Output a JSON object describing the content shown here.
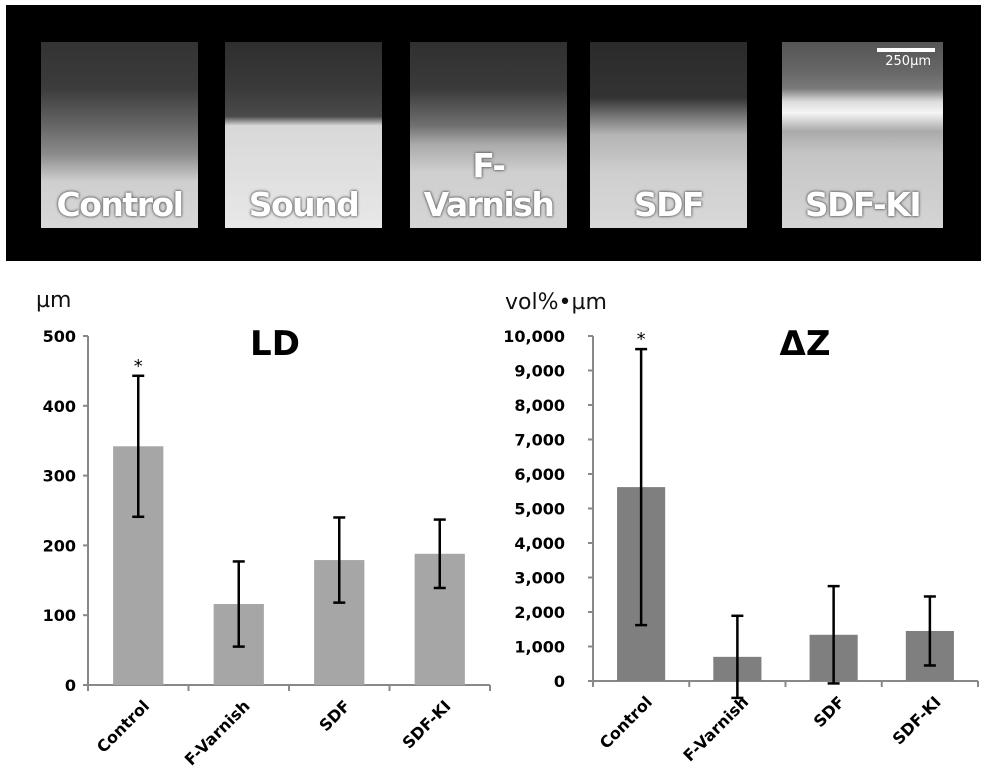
{
  "panel": {
    "images": [
      {
        "label": "Control",
        "gradient": "linear-gradient(#333 0%,#3c3c3c 25%,#666 45%,#8a8a8a 60%,#cfcfcf 75%,#d8d8d8 100%)"
      },
      {
        "label": "Sound",
        "gradient": "linear-gradient(#2e2e2e 0%,#3a3a3a 25%,#4a4a4a 40%,#d8d8d8 45%,#e8e8e8 100%)"
      },
      {
        "label": "F-Varnish",
        "gradient": "linear-gradient(#303030 0%,#3a3a3a 25%,#707070 45%,#aaa 55%,#cfcfcf 70%,#d5d5d5 100%)"
      },
      {
        "label": "SDF",
        "gradient": "linear-gradient(#2a2a2a 0%,#333 30%,#777 40%,#b5b5b5 50%,#c0c0c0 60%,#cfcfcf 70%,#d8d8d8 100%)"
      },
      {
        "label": "SDF-KI",
        "gradient": "linear-gradient(#555 0%,#666 15%,#7a7a7a 25%,#dcdcdc 32%,#f5f5f5 38%,#aaa 48%,#c5c5c5 60%,#d5d5d5 100%)"
      }
    ],
    "scale_label": "250µm"
  },
  "chart_data": [
    {
      "type": "bar",
      "title": "LD",
      "ylabel": "µm",
      "categories": [
        "Control",
        "F-Varnish",
        "SDF",
        "SDF-KI"
      ],
      "values": [
        342,
        116,
        179,
        188
      ],
      "errors": [
        101,
        61,
        61,
        49
      ],
      "annotations": [
        "*",
        "",
        "",
        ""
      ],
      "ylim": [
        0,
        500
      ],
      "yticks": [
        0,
        100,
        200,
        300,
        400,
        500
      ],
      "ytick_labels": [
        "0",
        "100",
        "200",
        "300",
        "400",
        "500"
      ],
      "color": "#a6a6a6",
      "grid": false
    },
    {
      "type": "bar",
      "title": "ΔZ",
      "ylabel": "vol%•µm",
      "categories": [
        "Control",
        "F-Varnish",
        "SDF",
        "SDF-KI"
      ],
      "values": [
        5620,
        700,
        1340,
        1450
      ],
      "errors": [
        4000,
        1190,
        1410,
        1000
      ],
      "annotations": [
        "*",
        "",
        "",
        ""
      ],
      "ylim": [
        0,
        10000
      ],
      "yticks": [
        0,
        1000,
        2000,
        3000,
        4000,
        5000,
        6000,
        7000,
        8000,
        9000,
        10000
      ],
      "ytick_labels": [
        "0",
        "1,000",
        "2,000",
        "3,000",
        "4,000",
        "5,000",
        "6,000",
        "7,000",
        "8,000",
        "9,000",
        "10,000"
      ],
      "color": "#7f7f7f",
      "grid": false
    }
  ]
}
